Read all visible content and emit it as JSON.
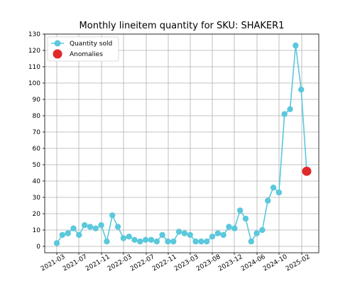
{
  "chart_data": {
    "type": "line",
    "title": "Monthly lineitem quantity for SKU: SHAKER1",
    "xlabel": "",
    "ylabel": "",
    "ylim": [
      -4,
      130
    ],
    "yticks": [
      0,
      10,
      20,
      30,
      40,
      50,
      60,
      70,
      80,
      90,
      100,
      110,
      120,
      130
    ],
    "xticks": [
      "2021-03",
      "2021-07",
      "2021-11",
      "2022-03",
      "2022-07",
      "2022-11",
      "2023-03",
      "2023-08",
      "2023-12",
      "2024-06",
      "2024-10",
      "2025-02"
    ],
    "grid": true,
    "legend_position": "top-left",
    "series": [
      {
        "name": "Quantity sold",
        "color": "#5bc8dc",
        "values": [
          2,
          7,
          8,
          11,
          7,
          13,
          12,
          11,
          13,
          3,
          19,
          12,
          5,
          6,
          4,
          3,
          4,
          4,
          3,
          7,
          3,
          3,
          9,
          8,
          7,
          3,
          3,
          3,
          6,
          8,
          7,
          12,
          11,
          22,
          17,
          3,
          8,
          10,
          28,
          36,
          33,
          81,
          84,
          123,
          96,
          46
        ]
      },
      {
        "name": "Anomalies",
        "color": "#e02a2a",
        "points": [
          {
            "index": 45,
            "value": 46
          }
        ]
      }
    ]
  }
}
